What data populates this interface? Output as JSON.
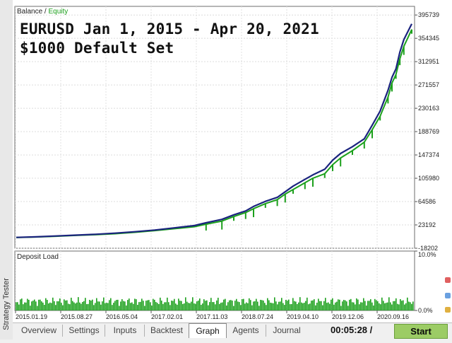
{
  "window": {
    "side_panel_label": "Strategy Tester"
  },
  "overlay": {
    "line1": "EURUSD Jan 1, 2015 - Apr 20, 2021",
    "line2": "$1000 Default Set"
  },
  "legend": {
    "balance": "Balance",
    "separator": " / ",
    "equity": "Equity"
  },
  "deposit_panel": {
    "label": "Deposit Load"
  },
  "chart_data": [
    {
      "type": "line",
      "series": [
        {
          "name": "Balance",
          "color": "#1a237e",
          "x": [
            0,
            5,
            10,
            15,
            20,
            25,
            30,
            35,
            40,
            45,
            48,
            52,
            55,
            58,
            60,
            63,
            66,
            68,
            70,
            73,
            75,
            78,
            80,
            82,
            85,
            88,
            90,
            92,
            94,
            95,
            96,
            97,
            98,
            100
          ],
          "values": [
            1000,
            2000,
            3500,
            5000,
            6500,
            8500,
            11000,
            14000,
            18000,
            22000,
            27000,
            33000,
            41000,
            48000,
            56000,
            65000,
            72000,
            82000,
            92000,
            104000,
            112000,
            122000,
            138000,
            150000,
            162000,
            176000,
            200000,
            225000,
            262000,
            285000,
            300000,
            330000,
            352000,
            380000
          ]
        },
        {
          "name": "Equity",
          "color": "#1ca01c",
          "x": [
            0,
            5,
            10,
            15,
            20,
            25,
            30,
            35,
            40,
            45,
            48,
            52,
            55,
            58,
            60,
            63,
            66,
            68,
            70,
            73,
            75,
            78,
            80,
            82,
            85,
            88,
            90,
            92,
            94,
            95,
            96,
            97,
            98,
            100
          ],
          "values": [
            800,
            1700,
            3000,
            4500,
            5800,
            7500,
            10000,
            13000,
            16500,
            20000,
            24500,
            30000,
            38000,
            45000,
            52000,
            61000,
            68000,
            78000,
            86000,
            98000,
            106000,
            114000,
            130000,
            142000,
            155000,
            170000,
            192000,
            216000,
            250000,
            275000,
            290000,
            318000,
            340000,
            370000
          ]
        }
      ],
      "ylim": [
        -18202,
        411040
      ],
      "y_ticks": [
        "395739",
        "354345",
        "312951",
        "271557",
        "230163",
        "188769",
        "147374",
        "105980",
        "64586",
        "23192",
        "-18202"
      ],
      "x_ticks": [
        "2015.01.19",
        "2015.08.27",
        "2016.05.04",
        "2017.02.01",
        "2017.11.03",
        "2018.07.24",
        "2019.04.10",
        "2019.12.06",
        "2020.09.16"
      ],
      "grid": true
    },
    {
      "type": "bar",
      "series": [
        {
          "name": "Deposit Load",
          "color": "#1ca01c"
        }
      ],
      "ylim": [
        0,
        10
      ],
      "y_ticks": [
        "10.0%",
        "0.0%"
      ],
      "approx_level_percent": 1.5,
      "grid": true
    }
  ],
  "tabs": [
    "Overview",
    "Settings",
    "Inputs",
    "Backtest",
    "Graph",
    "Agents",
    "Journal"
  ],
  "active_tab": "Graph",
  "timer": "00:05:28 /",
  "start_label": "Start"
}
